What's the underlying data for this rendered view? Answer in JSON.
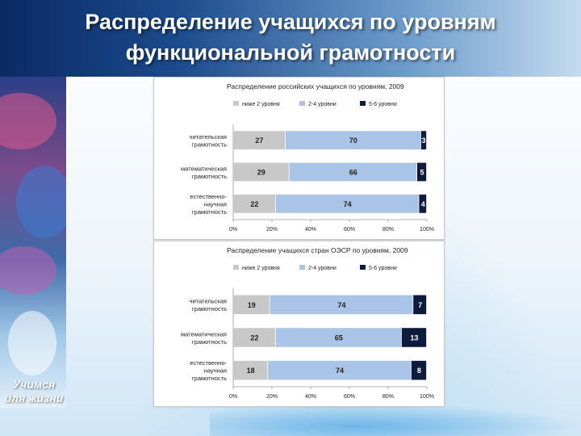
{
  "slide": {
    "title_line1": "Распределение учащихся по уровням",
    "title_line2": "функциональной грамотности",
    "logo_line1": "Учимся",
    "logo_line2": "для жизни"
  },
  "colors": {
    "low": "#c8c8c8",
    "mid": "#a9c4e6",
    "high": "#0e1b3d"
  },
  "chart_data": [
    {
      "type": "bar",
      "stacked": true,
      "orientation": "horizontal",
      "title": "Распределение российских учащихся по уровням, 2009",
      "legend": [
        "ниже 2 уровня",
        "2-4 уровни",
        "5-6 уровни"
      ],
      "legend_position": "top",
      "categories": [
        [
          "читательская",
          "грамотность"
        ],
        [
          "математическая",
          "грамотность"
        ],
        [
          "естественно-",
          "научная",
          "грамотность"
        ]
      ],
      "series": [
        {
          "name": "ниже 2 уровня",
          "values": [
            27,
            29,
            22
          ]
        },
        {
          "name": "2-4 уровни",
          "values": [
            70,
            66,
            74
          ]
        },
        {
          "name": "5-6 уровни",
          "values": [
            3,
            5,
            4
          ]
        }
      ],
      "xlim": [
        0,
        100
      ],
      "xticks": [
        "0%",
        "20%",
        "40%",
        "60%",
        "80%",
        "100%"
      ]
    },
    {
      "type": "bar",
      "stacked": true,
      "orientation": "horizontal",
      "title": "Распределение учащихся стран ОЭСР по уровням, 2009",
      "legend": [
        "ниже 2 уровня",
        "2-4 уровни",
        "5-6 уровни"
      ],
      "legend_position": "top",
      "categories": [
        [
          "читательская",
          "грамотность"
        ],
        [
          "математическая",
          "грамотность"
        ],
        [
          "естественно-",
          "научная",
          "грамотность"
        ]
      ],
      "series": [
        {
          "name": "ниже 2 уровня",
          "values": [
            19,
            22,
            18
          ]
        },
        {
          "name": "2-4 уровни",
          "values": [
            74,
            65,
            74
          ]
        },
        {
          "name": "5-6 уровни",
          "values": [
            7,
            13,
            8
          ]
        }
      ],
      "xlim": [
        0,
        100
      ],
      "xticks": [
        "0%",
        "20%",
        "40%",
        "60%",
        "80%",
        "100%"
      ]
    }
  ]
}
